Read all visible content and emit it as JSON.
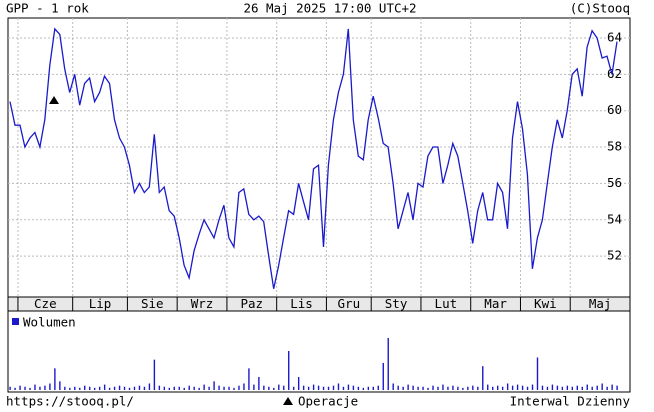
{
  "chart_data": {
    "type": "line",
    "title": "GPP - 1 rok",
    "subtitle": "26 Maj 2025 17:00 UTC+2",
    "source": "(C)Stooq",
    "footer_url": "https://stooq.pl/",
    "operations_label": "Operacje",
    "interval": "Interwal Dzienny",
    "categories": [
      null,
      null,
      "Cze",
      null,
      null,
      null,
      null,
      null,
      null,
      null,
      null,
      null,
      null,
      "Lip",
      null,
      null,
      null,
      null,
      null,
      null,
      null,
      null,
      null,
      null,
      "Sie",
      null,
      null,
      null,
      null,
      null,
      null,
      null,
      null,
      null,
      "Wrz",
      null,
      null,
      null,
      null,
      null,
      null,
      null,
      null,
      null,
      "Paz",
      null,
      null,
      null,
      null,
      null,
      null,
      null,
      null,
      null,
      "Lis",
      null,
      null,
      null,
      null,
      null,
      null,
      null,
      null,
      null,
      "Gru",
      null,
      null,
      null,
      null,
      null,
      null,
      null,
      null,
      "Sty",
      null,
      null,
      null,
      null,
      null,
      null,
      null,
      null,
      null,
      "Lut",
      null,
      null,
      null,
      null,
      null,
      null,
      null,
      null,
      null,
      "Mar",
      null,
      null,
      null,
      null,
      null,
      null,
      null,
      null,
      null,
      "Kwi",
      null,
      null,
      null,
      null,
      null,
      null,
      null,
      null,
      null,
      "Maj",
      null,
      null,
      null,
      null,
      null,
      null,
      null,
      null,
      null
    ],
    "series": [
      {
        "name": "GPP",
        "color": "#1a1acc",
        "values": [
          60.5,
          59.2,
          59.2,
          58.0,
          58.5,
          58.8,
          58.0,
          59.5,
          62.5,
          64.5,
          64.2,
          62.3,
          61.0,
          62.0,
          60.3,
          61.5,
          61.8,
          60.5,
          61.0,
          61.9,
          61.5,
          59.5,
          58.5,
          58.0,
          57.0,
          55.5,
          56.0,
          55.5,
          55.8,
          58.7,
          55.5,
          55.8,
          54.5,
          54.2,
          53.0,
          51.5,
          50.8,
          52.3,
          53.2,
          54.0,
          53.5,
          53.0,
          54.0,
          54.8,
          53.0,
          52.5,
          55.5,
          55.7,
          54.3,
          54.0,
          54.2,
          53.9,
          52.0,
          50.2,
          51.5,
          53.0,
          54.5,
          54.3,
          56.0,
          55.0,
          54.0,
          56.8,
          57.0,
          52.5,
          57.0,
          59.5,
          61.0,
          62.0,
          64.5,
          59.5,
          57.5,
          57.3,
          59.5,
          60.8,
          59.6,
          58.2,
          58.0,
          56.0,
          53.5,
          54.5,
          55.5,
          54.0,
          56.0,
          55.8,
          57.5,
          58.0,
          58.0,
          56.0,
          57.0,
          58.2,
          57.5,
          56.0,
          54.5,
          52.7,
          54.5,
          55.5,
          54.0,
          54.0,
          56.0,
          55.5,
          53.5,
          58.5,
          60.5,
          59.0,
          56.5,
          51.3,
          53.0,
          54.0,
          56.0,
          58.0,
          59.5,
          58.5,
          60.0,
          62.0,
          62.3,
          60.8,
          63.5,
          64.4,
          64.0,
          62.9,
          63.0,
          62.0,
          63.8
        ]
      }
    ],
    "volume": {
      "name": "Wolumen",
      "color": "#1a1acc",
      "values": [
        3,
        2,
        4,
        3,
        2,
        5,
        3,
        4,
        6,
        20,
        8,
        3,
        2,
        3,
        2,
        4,
        3,
        2,
        3,
        5,
        2,
        3,
        4,
        3,
        2,
        3,
        4,
        3,
        6,
        28,
        4,
        3,
        2,
        3,
        3,
        2,
        4,
        3,
        2,
        5,
        3,
        8,
        4,
        3,
        3,
        2,
        4,
        6,
        20,
        5,
        12,
        4,
        3,
        2,
        5,
        4,
        36,
        3,
        12,
        4,
        3,
        5,
        4,
        3,
        3,
        4,
        6,
        3,
        5,
        4,
        3,
        2,
        3,
        3,
        4,
        25,
        48,
        6,
        4,
        3,
        5,
        4,
        3,
        3,
        2,
        4,
        3,
        5,
        3,
        4,
        3,
        2,
        3,
        4,
        3,
        22,
        5,
        3,
        4,
        3,
        6,
        4,
        5,
        4,
        3,
        5,
        30,
        4,
        3,
        5,
        4,
        3,
        4,
        3,
        4,
        3,
        5,
        3,
        4,
        6,
        3,
        5,
        4
      ]
    },
    "ylim": [
      49.75,
      65.1
    ],
    "yticks": [
      52,
      54,
      56,
      58,
      60,
      62,
      64
    ],
    "grid": true
  }
}
